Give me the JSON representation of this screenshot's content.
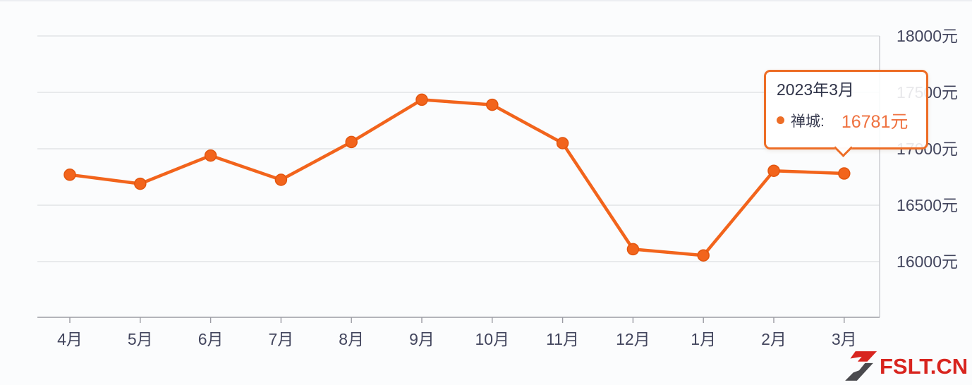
{
  "chart_data": {
    "type": "line",
    "title": "",
    "categories": [
      "4月",
      "5月",
      "6月",
      "7月",
      "8月",
      "9月",
      "10月",
      "11月",
      "12月",
      "1月",
      "2月",
      "3月"
    ],
    "series": [
      {
        "name": "禅城",
        "color": "#f2641c",
        "values": [
          16770,
          16690,
          16940,
          16725,
          17060,
          17435,
          17390,
          17050,
          16110,
          16055,
          16805,
          16781
        ]
      }
    ],
    "highlighted_point": {
      "category": "3月",
      "value": 16781
    },
    "yticks": [
      18000,
      17500,
      17000,
      16500,
      16000
    ],
    "ytick_suffix": "元",
    "ylim": [
      16000,
      18000
    ],
    "grid": true,
    "legend_position": "none",
    "xlabel": "",
    "ylabel": ""
  },
  "tooltip": {
    "title": "2023年3月",
    "series_label": "禅城:",
    "value_text": "16781元"
  },
  "watermark": {
    "text": "FSLT.CN"
  },
  "colors": {
    "line": "#f2641c",
    "point_stroke": "#e2550e",
    "tooltip_border": "#ed6d26",
    "tooltip_value": "#ef7240",
    "axis_text": "#43465e",
    "gridline": "#e2e3e7",
    "axis_line": "#9b9ba3",
    "plot_right_border": "#cfd0d5",
    "logo_red": "#d8251f",
    "logo_dark": "#4a4a4e"
  }
}
